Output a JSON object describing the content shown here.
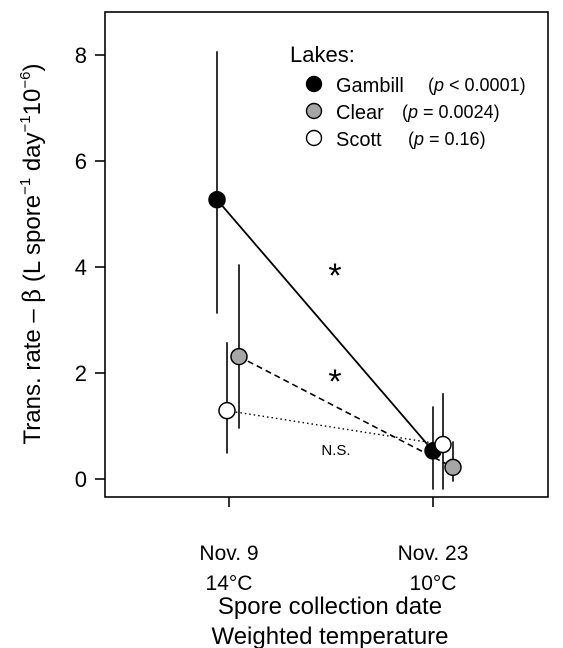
{
  "chart_data": {
    "type": "scatter",
    "xlabel": [
      "Spore collection date",
      "Weighted temperature"
    ],
    "ylabel_parts": {
      "before": "Trans. rate – ",
      "beta": "β",
      "unit_open": " (L spore",
      "sup1": "−1",
      "mid": " day",
      "sup2": "−1",
      "pow": "10",
      "sup3": "−6",
      "unit_close": ")"
    },
    "categories": [
      {
        "date": "Nov. 9",
        "temp": "14°C"
      },
      {
        "date": "Nov. 23",
        "temp": "10°C"
      }
    ],
    "ylim": [
      -0.3,
      8.8
    ],
    "yticks": [
      "0",
      "2",
      "4",
      "6",
      "8"
    ],
    "legend_title": "Lakes:",
    "series": [
      {
        "name": "Gambill",
        "p_value": "(p < 0.0001)",
        "p_prefix": "(",
        "p_italic": "p",
        "p_rest": " < 0.0001)",
        "fill": "#000000",
        "linestyle": "solid",
        "points": [
          {
            "x": 0,
            "y": 5.27,
            "lo": 3.12,
            "hi": 8.07
          },
          {
            "x": 1,
            "y": 0.53,
            "lo": -0.2,
            "hi": 1.37
          }
        ]
      },
      {
        "name": "Clear",
        "p_value": "(p = 0.0024)",
        "p_prefix": "(",
        "p_italic": "p",
        "p_rest": " = 0.0024)",
        "fill": "#a6a6a6",
        "linestyle": "dashed",
        "points": [
          {
            "x": 0,
            "y": 2.31,
            "lo": 0.95,
            "hi": 4.05
          },
          {
            "x": 1,
            "y": 0.22,
            "lo": -0.05,
            "hi": 0.71
          }
        ]
      },
      {
        "name": "Scott",
        "p_value": "(p = 0.16)",
        "p_prefix": "(",
        "p_italic": "p",
        "p_rest": " = 0.16)",
        "fill": "#ffffff",
        "linestyle": "dotted",
        "points": [
          {
            "x": 0,
            "y": 1.29,
            "lo": 0.48,
            "hi": 2.58
          },
          {
            "x": 1,
            "y": 0.65,
            "lo": -0.2,
            "hi": 1.62
          }
        ]
      }
    ],
    "annotations": [
      {
        "text": "*",
        "kind": "significance",
        "x": 0.5,
        "y": 4.0
      },
      {
        "text": "*",
        "kind": "significance",
        "x": 0.5,
        "y": 2.0
      },
      {
        "text": "N.S.",
        "kind": "label",
        "x": 0.5,
        "y": 0.55
      }
    ],
    "grid": false,
    "legend_position": "top-right"
  }
}
